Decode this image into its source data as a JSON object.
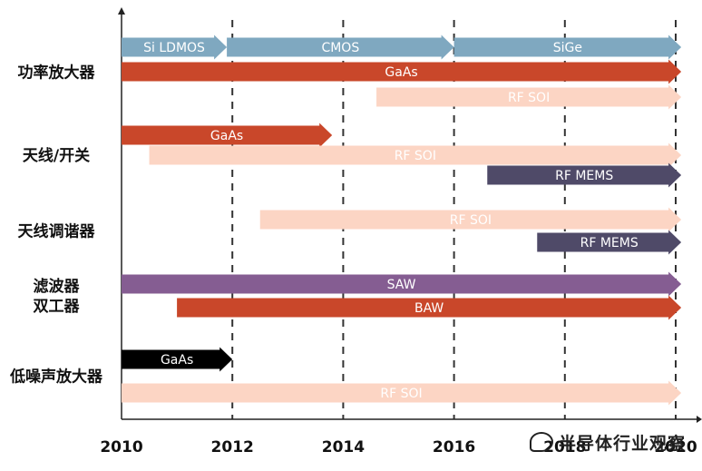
{
  "chart_data": {
    "type": "timeline",
    "x_range": [
      2010,
      2020
    ],
    "x_ticks": [
      "2010",
      "2012",
      "2014",
      "2016",
      "2018",
      "2020"
    ],
    "categories": [
      {
        "label_lines": [
          "功率放大器"
        ],
        "rows": [
          0,
          1,
          2
        ]
      },
      {
        "label_lines": [
          "天线/开关"
        ],
        "rows": [
          3,
          4,
          5
        ]
      },
      {
        "label_lines": [
          "天线调谐器"
        ],
        "rows": [
          6,
          7
        ]
      },
      {
        "label_lines": [
          "滤波器",
          "双工器"
        ],
        "rows": [
          8,
          9
        ]
      },
      {
        "label_lines": [
          "低噪声放大器"
        ],
        "rows": [
          10,
          11
        ]
      }
    ],
    "bars": [
      {
        "row": 0,
        "label": "Si LDMOS",
        "start": 2010.0,
        "end": 2011.9,
        "color": "#7fa8c0",
        "label_color": "#ffffff"
      },
      {
        "row": 0,
        "label": "CMOS",
        "start": 2011.9,
        "end": 2016.0,
        "color": "#7fa8c0",
        "label_color": "#ffffff"
      },
      {
        "row": 0,
        "label": "SiGe",
        "start": 2016.0,
        "end": 2020.1,
        "color": "#7fa8c0",
        "label_color": "#ffffff"
      },
      {
        "row": 1,
        "label": "GaAs",
        "start": 2010.0,
        "end": 2020.1,
        "color": "#c9472a",
        "label_color": "#ffffff"
      },
      {
        "row": 2,
        "label": "RF SOI",
        "start": 2014.6,
        "end": 2020.1,
        "color": "#fcd5c4",
        "label_color": "#ffffff"
      },
      {
        "row": 3,
        "label": "GaAs",
        "start": 2010.0,
        "end": 2013.8,
        "color": "#c9472a",
        "label_color": "#ffffff"
      },
      {
        "row": 4,
        "label": "RF SOI",
        "start": 2010.5,
        "end": 2020.1,
        "color": "#fcd5c4",
        "label_color": "#ffffff"
      },
      {
        "row": 5,
        "label": "RF MEMS",
        "start": 2016.6,
        "end": 2020.1,
        "color": "#4f4a68",
        "label_color": "#ffffff"
      },
      {
        "row": 6,
        "label": "RF SOI",
        "start": 2012.5,
        "end": 2020.1,
        "color": "#fcd5c4",
        "label_color": "#ffffff"
      },
      {
        "row": 7,
        "label": "RF MEMS",
        "start": 2017.5,
        "end": 2020.1,
        "color": "#4f4a68",
        "label_color": "#ffffff"
      },
      {
        "row": 8,
        "label": "SAW",
        "start": 2010.0,
        "end": 2020.1,
        "color": "#855d92",
        "label_color": "#ffffff"
      },
      {
        "row": 9,
        "label": "BAW",
        "start": 2011.0,
        "end": 2020.1,
        "color": "#c9472a",
        "label_color": "#ffffff"
      },
      {
        "row": 10,
        "label": "GaAs",
        "start": 2010.0,
        "end": 2012.0,
        "color": "#000000",
        "label_color": "#ffffff"
      },
      {
        "row": 11,
        "label": "RF SOI",
        "start": 2010.0,
        "end": 2020.1,
        "color": "#fcd5c4",
        "label_color": "#ffffff"
      }
    ],
    "grid": "vertical-dashed"
  },
  "watermark": {
    "text": "半导体行业观察"
  }
}
